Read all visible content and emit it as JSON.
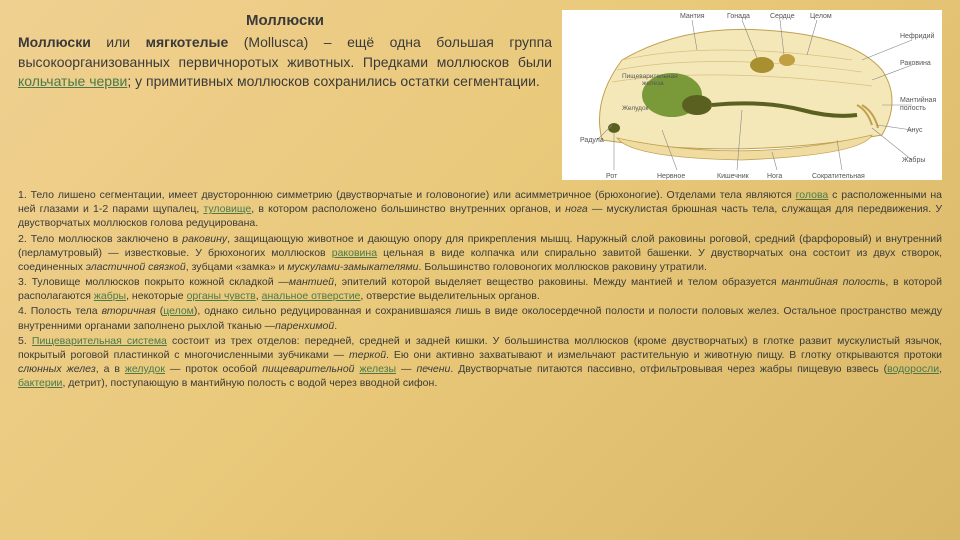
{
  "title": "Моллюски",
  "intro_html": "<span class='bold'>Моллюски</span> или <span class='bold'>мягкотелые</span> (Mollusca) – ещё одна большая группа высокоорганизованных первичноротых животных. Предками моллюсков были <a class='link'>кольчатые черви</a>; у примитивных моллюсков сохранились остатки сегментации.",
  "diagram": {
    "type": "anatomical-diagram",
    "background_color": "#ffffff",
    "organism_fill": "#f5e8b8",
    "organism_outline": "#c0a050",
    "organ_green": "#7a9a3a",
    "organ_dark": "#5a6020",
    "line_color": "#888888",
    "label_fontsize": 8,
    "labels_top": [
      "Мантия",
      "Гонада",
      "Сердце",
      "Целом",
      "Нефридий",
      "Раковина"
    ],
    "labels_left": [
      "Пищеварительная железа",
      "Желудок",
      "Радула",
      "Рот"
    ],
    "labels_bottom": [
      "Нервное кольцо",
      "Кишечник",
      "Нога",
      "Сократительная мышца"
    ],
    "labels_right": [
      "Мантийная полость",
      "Анус",
      "Жабры"
    ]
  },
  "points": [
    "1. Тело лишено сегментации, имеет двустороннюю симметрию (двустворчатые и головоногие) или асимметричное (брюхоногие). Отделами тела являются <a class='link'>голова</a> с расположенными на ней глазами и 1-2 парами щупалец, <a class='link'>туловище</a>, в котором расположено большинство внутренних органов, и <span class='italic'>нога</span> — мускулистая брюшная часть тела, служащая для передвижения. У двустворчатых моллюсков голова редуцирована.",
    "2. Тело моллюсков заключено в <span class='italic'>раковину</span>, защищающую животное и дающую опору для прикрепления мышц. Наружный слой раковины роговой, средний (фарфоровый) и внутренний (перламутровый) — известковые. У брюхоногих моллюсков <a class='link'>раковина</a> цельная в виде колпачка или спирально завитой башенки. У двустворчатых она состоит из двух створок, соединенных <span class='italic'>эластичной связкой</span>, зубцами «замка» и <span class='italic'>мускулами-замыкателями</span>. Большинство головоногих моллюсков раковину утратили.",
    "3. Туловище моллюсков покрыто кожной складкой —<span class='italic'>мантией</span>, эпителий которой выделяет вещество раковины. Между мантией и телом образуется <span class='italic'>мантийная полость</span>, в которой располагаются <a class='link'>жабры</a>, некоторые <a class='link'>органы чувств</a>, <a class='link'>анальное отверстие</a>, отверстие выделительных органов.",
    "4. Полость тела <span class='italic'>вторичная</span> (<a class='link'>целом</a>), однако сильно редуцированная и сохранившаяся лишь в виде околосердечной полости и полости половых желез. Остальное пространство между внутренними органами заполнено рыхлой тканью —<span class='italic'>паренхимой</span>.",
    "5. <a class='link'>Пищеварительная система</a> состоит из трех отделов: передней, средней и задней кишки. У большинства моллюсков (кроме двустворчатых) в глотке развит мускулистый язычок, покрытый роговой пластинкой с многочисленными зубчиками — <span class='italic'>теркой</span>. Ею они активно захватывают и измельчают растительную и животную пищу. В глотку открываются протоки <span class='italic'>слюнных желез</span>, а в <a class='link'>желудок</a> — проток особой <span class='italic'>пищеварительной</span> <a class='link'>железы</a> — <span class='italic'>печени</span>. Двустворчатые питаются пассивно, отфильтровывая через жабры пищевую взвесь (<a class='link'>водоросли</a>, <a class='link'>бактерии</a>, детрит), поступающую в мантийную полость с водой через вводной сифон."
  ]
}
